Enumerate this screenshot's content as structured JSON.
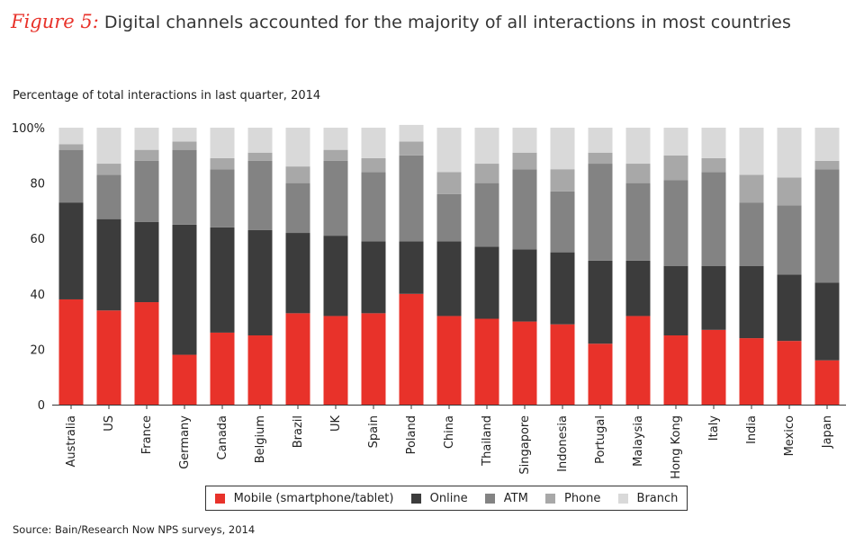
{
  "header": {
    "figure_label": "Figure 5:",
    "title": "Digital channels accounted for the majority of all interactions in most countries"
  },
  "chart_data": {
    "type": "bar",
    "stacked": true,
    "subtitle": "Percentage of total interactions in last quarter, 2014",
    "categories": [
      "Australia",
      "US",
      "France",
      "Germany",
      "Canada",
      "Belgium",
      "Brazil",
      "UK",
      "Spain",
      "Poland",
      "China",
      "Thailand",
      "Singapore",
      "Indonesia",
      "Portugal",
      "Malaysia",
      "Hong Kong",
      "Italy",
      "India",
      "Mexico",
      "Japan"
    ],
    "series": [
      {
        "name": "Mobile (smartphone/tablet)",
        "color": "#e8322a",
        "values": [
          38,
          34,
          37,
          18,
          26,
          25,
          33,
          32,
          33,
          40,
          32,
          31,
          30,
          29,
          22,
          32,
          25,
          27,
          24,
          23,
          16
        ]
      },
      {
        "name": "Online",
        "color": "#3c3c3c",
        "values": [
          35,
          33,
          29,
          47,
          38,
          38,
          29,
          29,
          26,
          19,
          27,
          26,
          26,
          26,
          30,
          20,
          25,
          23,
          26,
          24,
          28
        ]
      },
      {
        "name": "ATM",
        "color": "#838383",
        "values": [
          19,
          16,
          22,
          27,
          21,
          25,
          18,
          27,
          25,
          31,
          17,
          23,
          29,
          22,
          35,
          28,
          31,
          34,
          23,
          25,
          41
        ]
      },
      {
        "name": "Phone",
        "color": "#a8a8a8",
        "values": [
          2,
          4,
          4,
          3,
          4,
          3,
          6,
          4,
          5,
          5,
          8,
          7,
          6,
          8,
          4,
          7,
          9,
          5,
          10,
          10,
          3
        ]
      },
      {
        "name": "Branch",
        "color": "#d9d9d9",
        "values": [
          6,
          13,
          8,
          5,
          11,
          9,
          14,
          8,
          11,
          6,
          16,
          13,
          9,
          15,
          9,
          13,
          10,
          11,
          17,
          18,
          12
        ]
      }
    ],
    "yticks": [
      0,
      20,
      40,
      60,
      80,
      100
    ],
    "ytick_labels": [
      "0",
      "20",
      "40",
      "60",
      "80",
      "100%"
    ],
    "ylim": [
      0,
      100
    ],
    "legend_placement": "bottom",
    "grid": false
  },
  "footer": {
    "source": "Source: Bain/Research Now NPS surveys, 2014"
  }
}
